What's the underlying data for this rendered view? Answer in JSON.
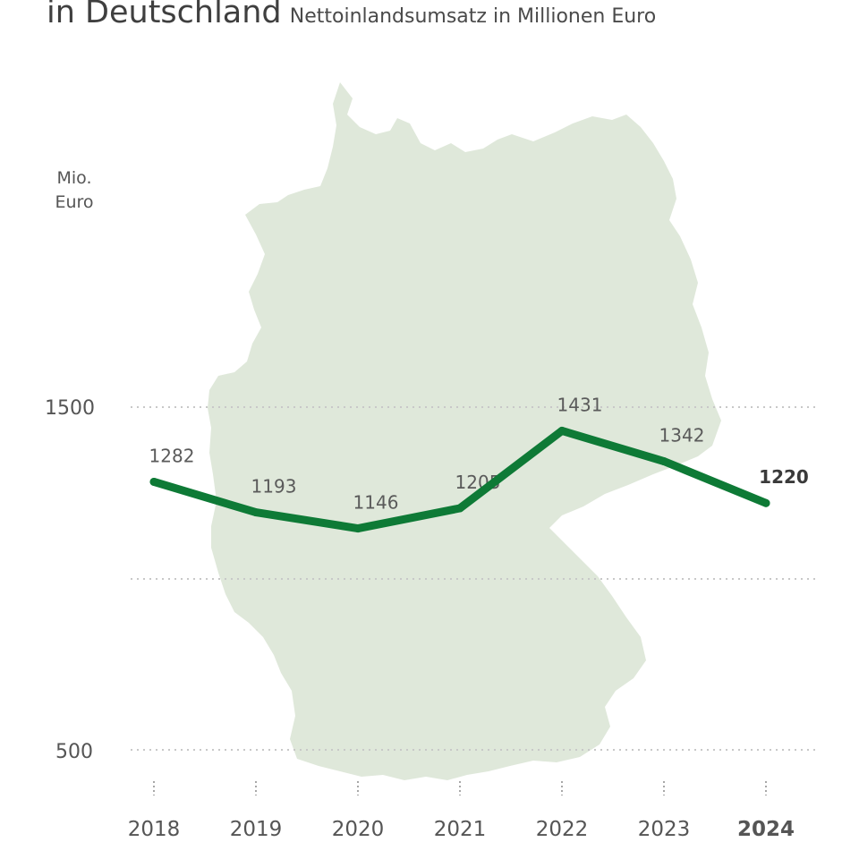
{
  "header": {
    "title": "in Deutschland",
    "subtitle": "Nettoinlandsumsatz in Millionen Euro"
  },
  "colors": {
    "line": "#0e7a36",
    "map_fill": "#dfe8da",
    "grid": "#c8c8c8",
    "text": "#555555"
  },
  "chart_data": {
    "type": "line",
    "title": "in Deutschland",
    "subtitle": "Nettoinlandsumsatz in Millionen Euro",
    "ylabel": "Mio. Euro",
    "ylabel_lines": [
      "Mio.",
      "Euro"
    ],
    "xlabel": "",
    "categories": [
      "2018",
      "2019",
      "2020",
      "2021",
      "2022",
      "2023",
      "2024"
    ],
    "values": [
      1282,
      1193,
      1146,
      1205,
      1431,
      1342,
      1220
    ],
    "value_labels": [
      "1282",
      "1193",
      "1146",
      "1205",
      "1431",
      "1342",
      "1220"
    ],
    "highlight_category": "2024",
    "y_ticks": [
      1500,
      500
    ],
    "y_tick_labels": [
      "1500",
      "500"
    ],
    "grid": true,
    "legend": "none",
    "background": "Germany map silhouette"
  }
}
